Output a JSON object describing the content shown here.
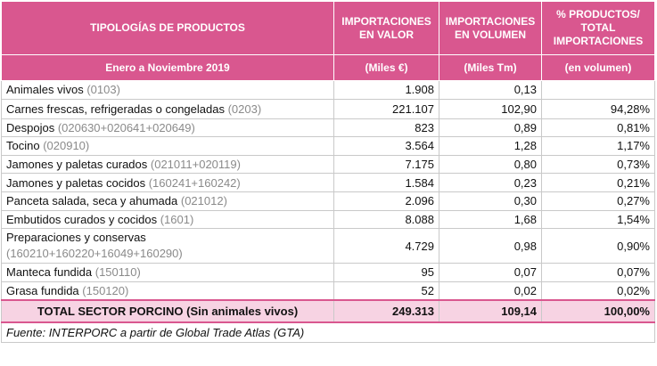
{
  "header": {
    "col_category": "TIPOLOGÍAS DE PRODUCTOS",
    "period": "Enero a Noviembre 2019",
    "col_value_line1": "IMPORTACIONES",
    "col_value_line2": "EN VALOR",
    "col_value_unit": "(Miles  €)",
    "col_volume_line1": "IMPORTACIONES",
    "col_volume_line2": "EN VOLUMEN",
    "col_volume_unit": "(Miles Tm)",
    "col_pct_line1": "% PRODUCTOS/",
    "col_pct_line2": "TOTAL",
    "col_pct_line3": "IMPORTACIONES",
    "col_pct_unit": "(en volumen)"
  },
  "rows": [
    {
      "name": "Animales vivos",
      "code": "(0103)",
      "value": "1.908",
      "volume": "0,13",
      "pct": ""
    },
    {
      "name": "Carnes frescas, refrigeradas o congeladas",
      "code": "(0203)",
      "value": "221.107",
      "volume": "102,90",
      "pct": "94,28%"
    },
    {
      "name": "Despojos",
      "code": "(020630+020641+020649)",
      "value": "823",
      "volume": "0,89",
      "pct": "0,81%"
    },
    {
      "name": "Tocino",
      "code": "(020910)",
      "value": "3.564",
      "volume": "1,28",
      "pct": "1,17%"
    },
    {
      "name": "Jamones y paletas curados",
      "code": "(021011+020119)",
      "value": "7.175",
      "volume": "0,80",
      "pct": "0,73%"
    },
    {
      "name": "Jamones y paletas cocidos",
      "code": "(160241+160242)",
      "value": "1.584",
      "volume": "0,23",
      "pct": "0,21%"
    },
    {
      "name": "Panceta salada, seca y ahumada",
      "code": "(021012)",
      "value": "2.096",
      "volume": "0,30",
      "pct": "0,27%"
    },
    {
      "name": "Embutidos curados y cocidos",
      "code": "(1601)",
      "value": "8.088",
      "volume": "1,68",
      "pct": "1,54%"
    },
    {
      "name": "Preparaciones y conservas",
      "code": "(160210+160220+16049+160290)",
      "value": "4.729",
      "volume": "0,98",
      "pct": "0,90%"
    },
    {
      "name": "Manteca fundida",
      "code": "(150110)",
      "value": "95",
      "volume": "0,07",
      "pct": "0,07%"
    },
    {
      "name": "Grasa fundida",
      "code": "(150120)",
      "value": "52",
      "volume": "0,02",
      "pct": "0,02%"
    }
  ],
  "total": {
    "name": "TOTAL SECTOR PORCINO (Sin animales vivos)",
    "value": "249.313",
    "volume": "109,14",
    "pct": "100,00%"
  },
  "source": "Fuente: INTERPORC a partir de Global Trade Atlas (GTA)",
  "colors": {
    "header_bg": "#d9578f",
    "total_bg": "#f7d3e3",
    "code_text": "#8a8a8a"
  }
}
